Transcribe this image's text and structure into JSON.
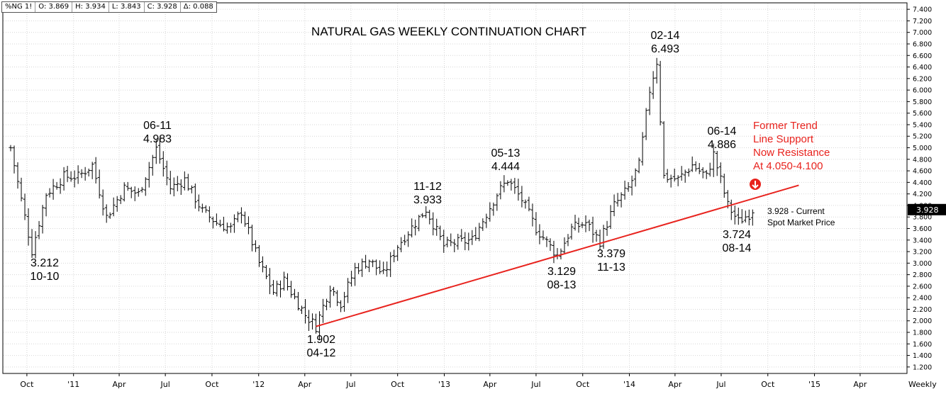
{
  "header": {
    "symbol": "%NG 1!",
    "open": "O: 3.869",
    "high": "H: 3.934",
    "low": "L: 3.843",
    "close": "C: 3.928",
    "change": "Δ: 0.088"
  },
  "chart_data": {
    "type": "ohlc",
    "title": "NATURAL GAS WEEKLY CONTINUATION CHART",
    "periodicity": "Weekly",
    "y_ticks": [
      "7.400",
      "7.200",
      "7.000",
      "6.800",
      "6.600",
      "6.400",
      "6.200",
      "6.000",
      "5.800",
      "5.600",
      "5.400",
      "5.200",
      "5.000",
      "4.800",
      "4.600",
      "4.400",
      "4.200",
      "4.000",
      "3.800",
      "3.600",
      "3.400",
      "3.200",
      "3.000",
      "2.800",
      "2.600",
      "2.400",
      "2.200",
      "2.000",
      "1.800",
      "1.600",
      "1.400",
      "1.200"
    ],
    "ylim": [
      1.1,
      7.5
    ],
    "x_ticks": [
      {
        "label": "Oct",
        "date": "2010-10-01"
      },
      {
        "label": "'11",
        "date": "2011-01-01"
      },
      {
        "label": "Apr",
        "date": "2011-04-01"
      },
      {
        "label": "Jul",
        "date": "2011-07-01"
      },
      {
        "label": "Oct",
        "date": "2011-10-01"
      },
      {
        "label": "'12",
        "date": "2012-01-01"
      },
      {
        "label": "Apr",
        "date": "2012-04-01"
      },
      {
        "label": "Jul",
        "date": "2012-07-01"
      },
      {
        "label": "Oct",
        "date": "2012-10-01"
      },
      {
        "label": "'13",
        "date": "2013-01-01"
      },
      {
        "label": "Apr",
        "date": "2013-04-01"
      },
      {
        "label": "Jul",
        "date": "2013-07-01"
      },
      {
        "label": "Oct",
        "date": "2013-10-01"
      },
      {
        "label": "'14",
        "date": "2014-01-01"
      },
      {
        "label": "Apr",
        "date": "2014-04-01"
      },
      {
        "label": "Jul",
        "date": "2014-07-01"
      },
      {
        "label": "Oct",
        "date": "2014-10-01"
      },
      {
        "label": "'15",
        "date": "2015-01-01"
      },
      {
        "label": "Apr",
        "date": "2015-04-01"
      }
    ],
    "anchors": [
      {
        "date": "2010-08-30",
        "value": 5.0
      },
      {
        "date": "2010-09-20",
        "value": 4.1
      },
      {
        "date": "2010-10-11",
        "value": 3.212
      },
      {
        "date": "2010-11-08",
        "value": 4.2
      },
      {
        "date": "2010-12-13",
        "value": 4.5
      },
      {
        "date": "2011-01-10",
        "value": 4.5
      },
      {
        "date": "2011-02-07",
        "value": 4.7
      },
      {
        "date": "2011-03-07",
        "value": 3.8
      },
      {
        "date": "2011-04-11",
        "value": 4.3
      },
      {
        "date": "2011-05-09",
        "value": 4.2
      },
      {
        "date": "2011-06-13",
        "value": 4.983
      },
      {
        "date": "2011-07-11",
        "value": 4.3
      },
      {
        "date": "2011-08-08",
        "value": 4.45
      },
      {
        "date": "2011-09-12",
        "value": 3.9
      },
      {
        "date": "2011-10-10",
        "value": 3.7
      },
      {
        "date": "2011-11-07",
        "value": 3.6
      },
      {
        "date": "2011-11-28",
        "value": 3.9
      },
      {
        "date": "2012-01-02",
        "value": 3.0
      },
      {
        "date": "2012-01-30",
        "value": 2.5
      },
      {
        "date": "2012-02-20",
        "value": 2.7
      },
      {
        "date": "2012-04-02",
        "value": 2.1
      },
      {
        "date": "2012-04-23",
        "value": 1.902
      },
      {
        "date": "2012-05-21",
        "value": 2.6
      },
      {
        "date": "2012-06-11",
        "value": 2.3
      },
      {
        "date": "2012-07-09",
        "value": 2.9
      },
      {
        "date": "2012-08-06",
        "value": 3.05
      },
      {
        "date": "2012-09-03",
        "value": 2.8
      },
      {
        "date": "2012-10-01",
        "value": 3.3
      },
      {
        "date": "2012-11-05",
        "value": 3.7
      },
      {
        "date": "2012-11-26",
        "value": 3.933
      },
      {
        "date": "2012-12-31",
        "value": 3.3
      },
      {
        "date": "2013-01-21",
        "value": 3.35
      },
      {
        "date": "2013-02-25",
        "value": 3.4
      },
      {
        "date": "2013-04-15",
        "value": 4.2
      },
      {
        "date": "2013-05-06",
        "value": 4.444
      },
      {
        "date": "2013-06-03",
        "value": 4.1
      },
      {
        "date": "2013-07-01",
        "value": 3.6
      },
      {
        "date": "2013-08-12",
        "value": 3.129
      },
      {
        "date": "2013-09-09",
        "value": 3.6
      },
      {
        "date": "2013-10-07",
        "value": 3.7
      },
      {
        "date": "2013-11-04",
        "value": 3.379
      },
      {
        "date": "2013-12-02",
        "value": 4.0
      },
      {
        "date": "2013-12-30",
        "value": 4.3
      },
      {
        "date": "2014-01-20",
        "value": 4.7
      },
      {
        "date": "2014-02-10",
        "value": 6.0
      },
      {
        "date": "2014-02-24",
        "value": 6.493
      },
      {
        "date": "2014-03-10",
        "value": 4.5
      },
      {
        "date": "2014-04-07",
        "value": 4.45
      },
      {
        "date": "2014-05-05",
        "value": 4.7
      },
      {
        "date": "2014-06-02",
        "value": 4.5
      },
      {
        "date": "2014-06-16",
        "value": 4.886
      },
      {
        "date": "2014-07-14",
        "value": 4.0
      },
      {
        "date": "2014-08-04",
        "value": 3.724
      },
      {
        "date": "2014-08-25",
        "value": 3.85
      },
      {
        "date": "2014-09-01",
        "value": 3.928
      }
    ],
    "trendline": {
      "start": {
        "date": "2012-04-23",
        "value": 1.902
      },
      "end": {
        "date": "2014-12-01",
        "value": 4.35
      },
      "color": "#e8231e"
    },
    "current_price": "3.928",
    "annotations": {
      "low_1010_value": "3.212",
      "low_1010_date": "10-10",
      "high_0611_date": "06-11",
      "high_0611_value": "4.983",
      "low_0412_value": "1.902",
      "low_0412_date": "04-12",
      "high_1112_date": "11-12",
      "high_1112_value": "3.933",
      "high_0513_date": "05-13",
      "high_0513_value": "4.444",
      "low_0813_value": "3.129",
      "low_0813_date": "08-13",
      "low_1113_value": "3.379",
      "low_1113_date": "11-13",
      "high_0214_date": "02-14",
      "high_0214_value": "6.493",
      "high_0614_date": "06-14",
      "high_0614_value": "4.886",
      "low_0814_value": "3.724",
      "low_0814_date": "08-14",
      "trend_note_line1": "Former Trend",
      "trend_note_line2": "Line Support",
      "trend_note_line3": "Now Resistance",
      "trend_note_line4": "At 4.050-4.100",
      "current_line1": "3.928 - Current",
      "current_line2": "Spot Market Price"
    },
    "colors": {
      "bars": "#000000",
      "trendline": "#e8231e",
      "note": "#e8231e",
      "price_box": "#000000"
    }
  }
}
